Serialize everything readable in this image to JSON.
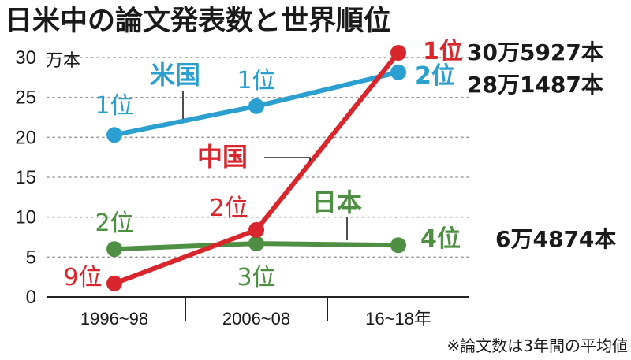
{
  "chart_data": {
    "type": "line",
    "title": "日米中の論文発表数と世界順位",
    "y_unit": "万本",
    "ylim": [
      0,
      30
    ],
    "yticks": [
      "0",
      "5",
      "10",
      "15",
      "20",
      "25",
      "30"
    ],
    "categories": [
      "1996~98",
      "2006~08",
      "16~18年"
    ],
    "grid": true,
    "series": [
      {
        "name": "米国",
        "color": "#2b9fcf",
        "values": [
          20.3,
          23.9,
          28.1487
        ],
        "rank_labels": [
          "1位",
          "1位",
          "2位"
        ],
        "final_value_label": "28万1487本"
      },
      {
        "name": "中国",
        "color": "#d8262c",
        "values": [
          1.7,
          8.4,
          30.5927
        ],
        "rank_labels": [
          "9位",
          "2位",
          "1位"
        ],
        "final_value_label": "30万5927本"
      },
      {
        "name": "日本",
        "color": "#4f8f43",
        "values": [
          6.0,
          6.7,
          6.4874
        ],
        "rank_labels": [
          "2位",
          "3位",
          "4位"
        ],
        "final_value_label": "6万4874本"
      }
    ],
    "note": "※論文数は3年間の平均値"
  }
}
